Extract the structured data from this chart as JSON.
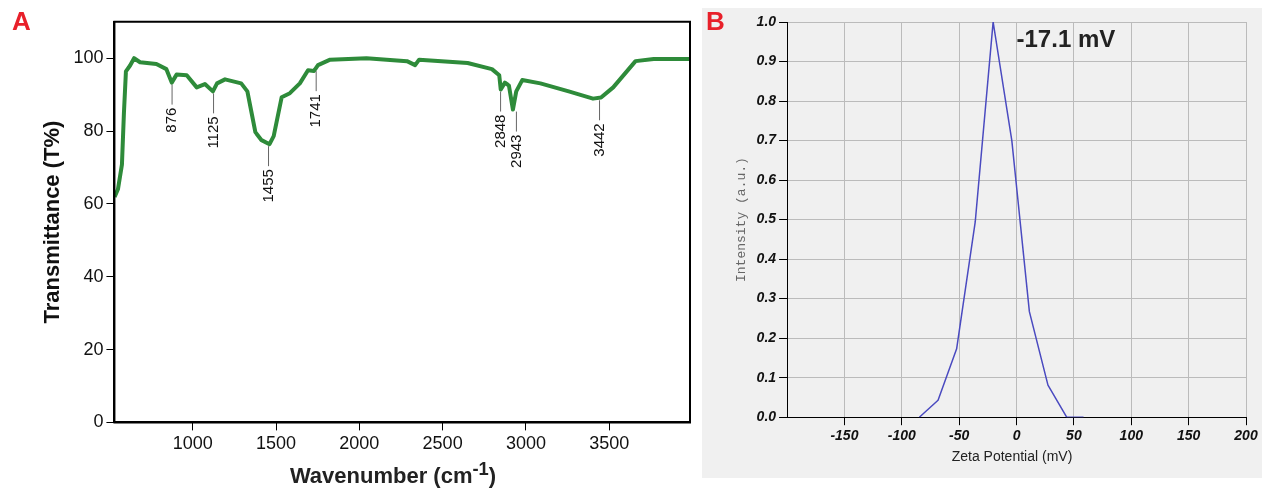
{
  "chart_data": [
    {
      "type": "line",
      "xlabel": "Wavenumber (cm$^{-1}$)",
      "ylabel": "Transmittance (T%)",
      "xlim": [
        530,
        3985
      ],
      "ylim": [
        0,
        110
      ],
      "xticks": [
        1000,
        1500,
        2000,
        2500,
        3000,
        3500
      ],
      "yticks": [
        0,
        20,
        40,
        60,
        80,
        100
      ],
      "grid": false,
      "legend": false,
      "x": [
        531,
        551,
        575,
        587,
        599,
        624,
        648,
        684,
        782,
        842,
        874,
        903,
        964,
        1024,
        1073,
        1121,
        1146,
        1194,
        1291,
        1328,
        1352,
        1376,
        1413,
        1461,
        1486,
        1534,
        1583,
        1643,
        1692,
        1728,
        1752,
        1825,
        2043,
        2286,
        2335,
        2359,
        2650,
        2796,
        2840,
        2849,
        2874,
        2898,
        2922,
        2942,
        2978,
        3087,
        3257,
        3403,
        3451,
        3524,
        3658,
        3767,
        3985
      ],
      "series": [
        {
          "color": "#2e8b3a",
          "values": [
            61.9,
            64,
            70.8,
            85,
            96.4,
            98,
            100,
            98.9,
            98.4,
            97,
            93.3,
            95.5,
            95.3,
            92,
            92.9,
            90.9,
            93.1,
            94.2,
            93.1,
            90.9,
            85.3,
            79.7,
            77.5,
            76.4,
            78.6,
            89.3,
            90.4,
            93.1,
            96.7,
            96.5,
            98.1,
            99.6,
            100,
            99.2,
            98.1,
            99.6,
            98.7,
            97,
            95.3,
            91.4,
            93.3,
            92.5,
            85.9,
            90.9,
            94,
            93.1,
            90.9,
            88.9,
            89.2,
            92,
            99.2,
            99.8,
            99.8
          ]
        }
      ],
      "annotations": [
        "A",
        {
          "text": "876",
          "x": 876,
          "y": 93.3
        },
        {
          "text": "1125",
          "x": 1125,
          "y": 90.9
        },
        {
          "text": "1455",
          "x": 1455,
          "y": 76.4
        },
        {
          "text": "1741",
          "x": 1741,
          "y": 97
        },
        {
          "text": "2848",
          "x": 2848,
          "y": 91.4
        },
        {
          "text": "2943",
          "x": 2943,
          "y": 85.9
        },
        {
          "text": "3442",
          "x": 3442,
          "y": 89
        }
      ]
    },
    {
      "type": "line",
      "xlabel": "Zeta Potential (mV)",
      "ylabel": "Intensity (a.u.)",
      "xlim": [
        -200,
        200
      ],
      "ylim": [
        0,
        1
      ],
      "xticks": [
        -150,
        -100,
        -50,
        0,
        50,
        100,
        150,
        200
      ],
      "yticks": [
        {
          "value": 0,
          "label": "0.0"
        },
        0.1,
        0.2,
        0.3,
        0.4,
        0.5,
        0.6,
        0.7,
        0.8,
        0.9,
        {
          "value": 1,
          "label": "1.0"
        }
      ],
      "grid": true,
      "legend": false,
      "x": [
        -84.7,
        -68.4,
        -52.2,
        -36,
        -20.4,
        -4.1,
        11.2,
        27.4,
        43.7,
        58.4
      ],
      "series": [
        {
          "color": "#4a4ac0",
          "values": [
            0,
            0.043,
            0.173,
            0.494,
            1,
            0.7,
            0.267,
            0.081,
            0,
            0
          ]
        }
      ],
      "annotations": [
        "B",
        "-17.1 mV"
      ]
    }
  ]
}
